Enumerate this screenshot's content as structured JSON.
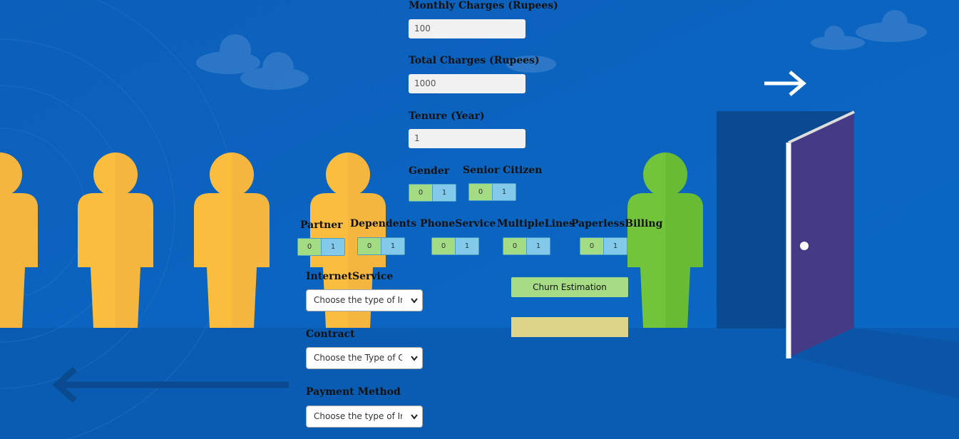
{
  "form": {
    "monthly_charges": {
      "label": "Monthly Charges (Rupees)",
      "value": "100"
    },
    "total_charges": {
      "label": "Total Charges (Rupees)",
      "value": "1000"
    },
    "tenure": {
      "label": "Tenure (Year)",
      "value": "1"
    },
    "toggles": [
      {
        "label": "Gender",
        "options": [
          "0",
          "1"
        ]
      },
      {
        "label": "Senior Citizen",
        "options": [
          "0",
          "1"
        ]
      },
      {
        "label": "Partner",
        "options": [
          "0",
          "1"
        ]
      },
      {
        "label": "Dependents",
        "options": [
          "0",
          "1"
        ]
      },
      {
        "label": "PhoneService",
        "options": [
          "0",
          "1"
        ]
      },
      {
        "label": "MultipleLines",
        "options": [
          "0",
          "1"
        ]
      },
      {
        "label": "PaperlessBilling",
        "options": [
          "0",
          "1"
        ]
      }
    ],
    "selects": [
      {
        "label": "InternetService",
        "placeholder": "Choose the type of Internet Service"
      },
      {
        "label": "Contract",
        "placeholder": "Choose the Type of Contract"
      },
      {
        "label": "Payment Method",
        "placeholder": "Choose the type of Internet Payment"
      }
    ],
    "button": "Churn Estimation"
  }
}
